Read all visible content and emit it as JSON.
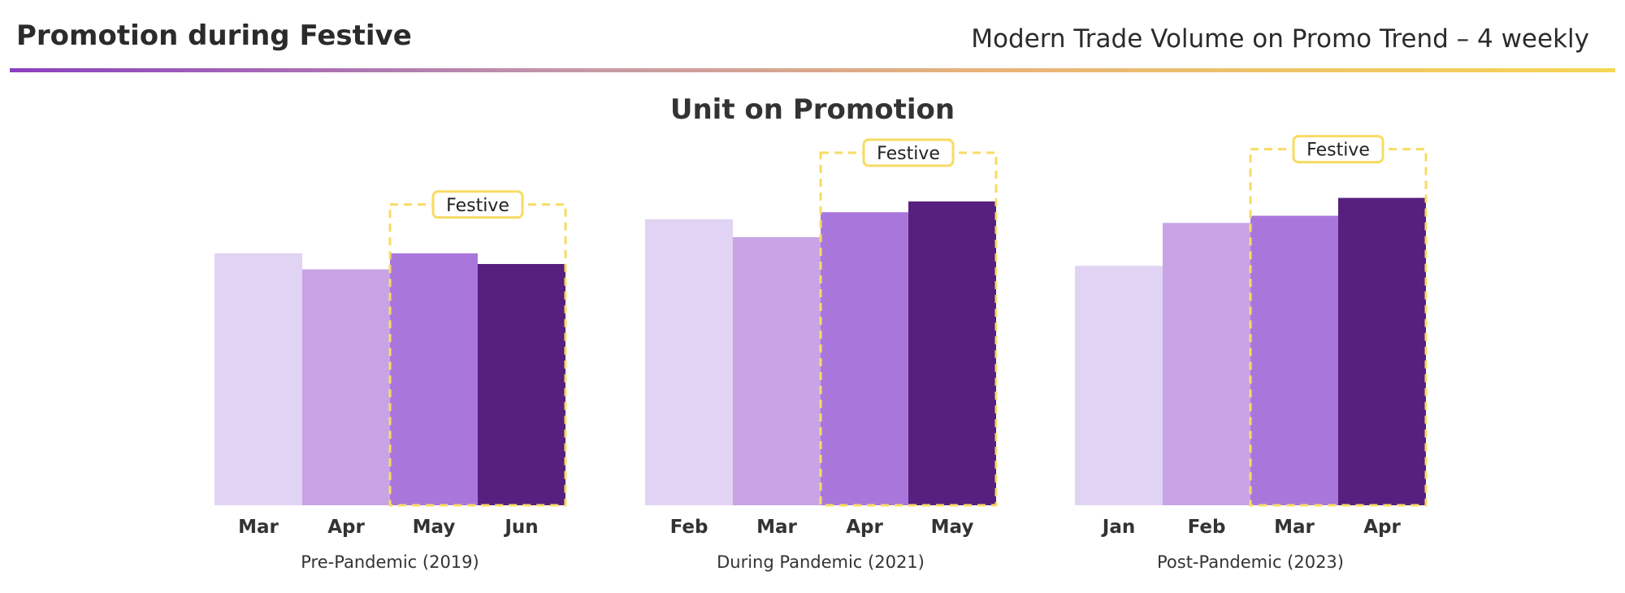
{
  "header": {
    "title": "Promotion during Festive",
    "subtitle": "Modern Trade Volume on Promo Trend – 4 weekly"
  },
  "colors": {
    "shades": [
      "#e1d3f3",
      "#c8a3e5",
      "#a977dc",
      "#57207e"
    ],
    "festive_border": "#f7dc62",
    "rule_start": "#8a3fc0",
    "rule_end": "#f5d654"
  },
  "chart_data": [
    {
      "type": "bar",
      "title": "Unit on Promotion",
      "group_label": "Pre-Pandemic (2019)",
      "categories": [
        "Mar",
        "Apr",
        "May",
        "Jun"
      ],
      "values": [
        70.5,
        66,
        70.5,
        67.5
      ],
      "highlight": {
        "label": "Festive",
        "categories": [
          "May",
          "Jun"
        ]
      },
      "ylim": [
        0,
        100
      ],
      "grid": false,
      "legend": "none"
    },
    {
      "type": "bar",
      "title": "Unit on Promotion",
      "group_label": "During Pandemic (2021)",
      "categories": [
        "Feb",
        "Mar",
        "Apr",
        "May"
      ],
      "values": [
        80,
        75,
        82,
        85
      ],
      "highlight": {
        "label": "Festive",
        "categories": [
          "Apr",
          "May"
        ]
      },
      "ylim": [
        0,
        100
      ],
      "grid": false,
      "legend": "none"
    },
    {
      "type": "bar",
      "title": "Unit on Promotion",
      "group_label": "Post-Pandemic (2023)",
      "categories": [
        "Jan",
        "Feb",
        "Mar",
        "Apr"
      ],
      "values": [
        67,
        79,
        81,
        86
      ],
      "highlight": {
        "label": "Festive",
        "categories": [
          "Mar",
          "Apr"
        ]
      },
      "ylim": [
        0,
        100
      ],
      "grid": false,
      "legend": "none"
    }
  ]
}
